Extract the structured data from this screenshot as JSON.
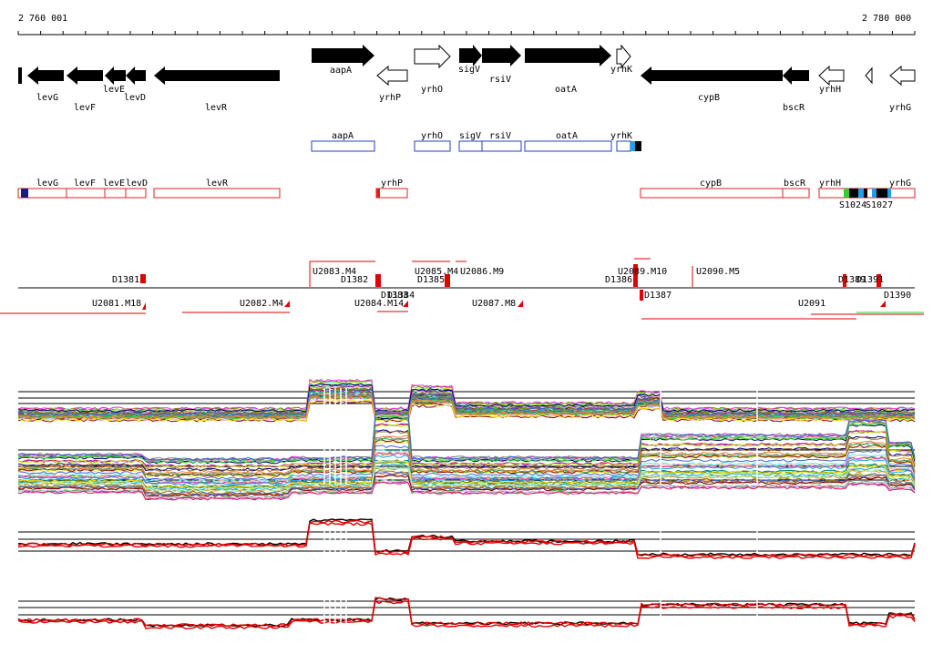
{
  "coordinates": {
    "start": "2 760 001",
    "end": "2 780 000"
  },
  "genes_upper": [
    "aapA",
    "yrhO",
    "sigV",
    "rsiV",
    "oatA",
    "yrhK"
  ],
  "genes_lower": [
    "levG",
    "levF",
    "levE",
    "levD",
    "levR",
    "yrhP",
    "cypB",
    "bscR",
    "yrhH",
    "yrhG"
  ],
  "reverse_gene_labels": [
    "levG",
    "levF",
    "levE",
    "levD",
    "levR",
    "yrhP",
    "cypB",
    "bscR",
    "yrhH",
    "yrhG"
  ],
  "forward_gene_labels": [
    "aapA",
    "yrhO",
    "sigV",
    "rsiV",
    "oatA",
    "yrhK"
  ],
  "annotations": {
    "s1": "S1024",
    "s2": "S1027"
  },
  "segments_upper": [
    "D1381",
    "U2083.M4",
    "D1382",
    "U2085.M4",
    "U2086.M9",
    "D1385",
    "D1386",
    "U2089.M10",
    "U2090.M5",
    "D1389",
    "D1391"
  ],
  "segments_lower": [
    "U2081.M18",
    "U2082.M4",
    "D1383",
    "D1384",
    "U2084.M14",
    "U2087.M8",
    "D1387",
    "U2091",
    "D1390"
  ],
  "colors": {
    "forward_box": "#1f3fbf",
    "reverse_box": "#e02020",
    "arrow_fill": "#000000",
    "track_red": "#e00000",
    "accent_cyan": "#1e9fe8",
    "accent_green": "#2fd12f"
  }
}
